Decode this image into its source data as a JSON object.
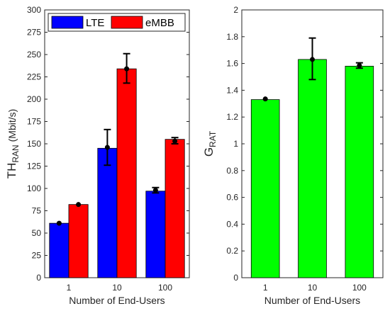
{
  "chart_data": [
    {
      "type": "bar",
      "categories": [
        "1",
        "10",
        "100"
      ],
      "series": [
        {
          "name": "LTE",
          "values": [
            61,
            145,
            97
          ],
          "err_low": [
            0,
            20,
            3
          ],
          "err_high": [
            0,
            20,
            3
          ],
          "marker": [
            61,
            146,
            98
          ]
        },
        {
          "name": "eMBB",
          "values": [
            82,
            234,
            155
          ],
          "err_low": [
            0,
            16,
            3
          ],
          "err_high": [
            0,
            17,
            4
          ],
          "marker": [
            82,
            234,
            153
          ]
        }
      ],
      "xlabel": "Number of End-Users",
      "ylabel": "TH",
      "ylabel_sub": "RAN",
      "ylabel_unit": " (Mbit/s)",
      "ylim": [
        0,
        300
      ],
      "yticks": [
        0,
        25,
        50,
        75,
        100,
        125,
        150,
        175,
        200,
        225,
        250,
        275,
        300
      ],
      "legend_position": "top",
      "colors": {
        "LTE": "#0000ff",
        "eMBB": "#ff0000"
      }
    },
    {
      "type": "bar",
      "categories": [
        "1",
        "10",
        "100"
      ],
      "series": [
        {
          "name": "",
          "values": [
            1.33,
            1.63,
            1.58
          ],
          "err_low": [
            0,
            0.15,
            0.02
          ],
          "err_high": [
            0,
            0.16,
            0.02
          ],
          "marker": [
            1.335,
            1.63,
            1.585
          ]
        }
      ],
      "xlabel": "Number of End-Users",
      "ylabel": "G",
      "ylabel_sub": "RAT",
      "ylabel_unit": "",
      "ylim": [
        0,
        2
      ],
      "yticks": [
        0,
        0.2,
        0.4,
        0.6,
        0.8,
        1,
        1.2,
        1.4,
        1.6,
        1.8,
        2
      ],
      "colors": {
        "bar": "#00ff00"
      }
    }
  ]
}
